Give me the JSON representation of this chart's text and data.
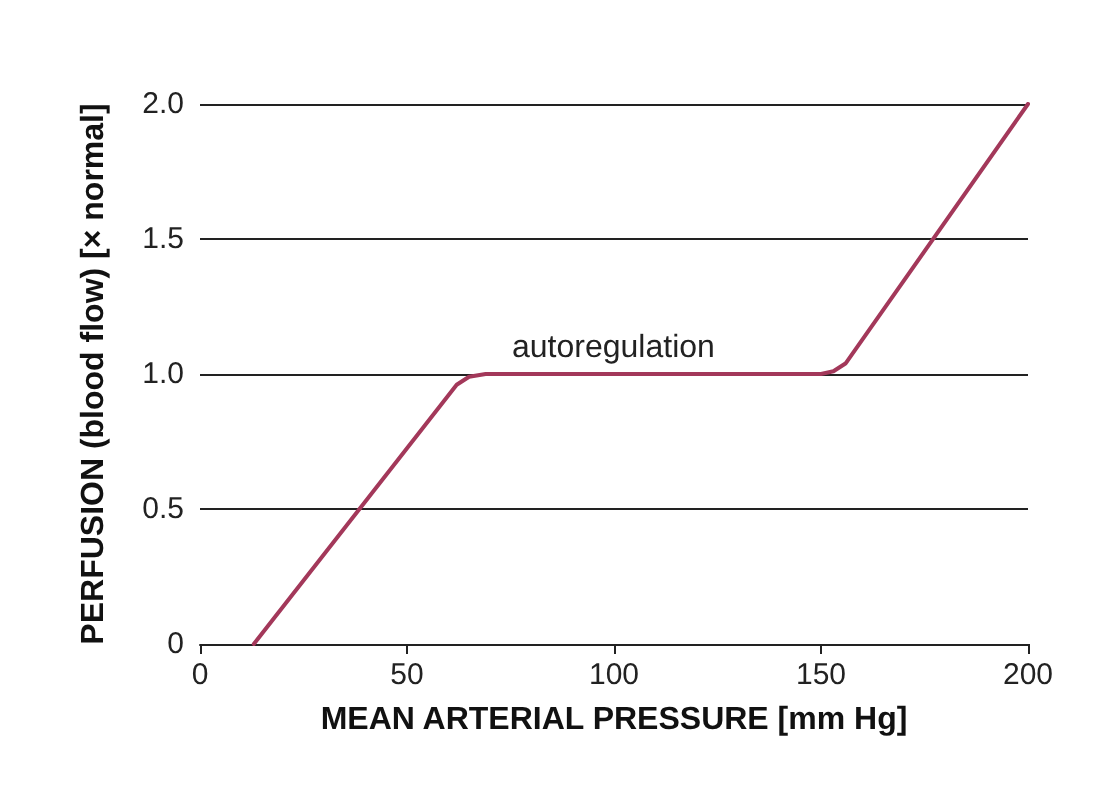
{
  "chart_data": {
    "type": "line",
    "xlabel": "MEAN ARTERIAL PRESSURE [mm Hg]",
    "ylabel": "PERFUSION (blood flow) [× normal]",
    "x": [
      13,
      62,
      65,
      69,
      150,
      153,
      156,
      200
    ],
    "series": [
      {
        "color": "#a3385a",
        "values": [
          0,
          0.96,
          0.99,
          1.0,
          1.0,
          1.01,
          1.04,
          2.0
        ]
      }
    ],
    "xlim": [
      0,
      200
    ],
    "xticks": [
      0,
      50,
      100,
      150,
      200
    ],
    "ylim": [
      0,
      2
    ],
    "yticks": [
      0,
      0.5,
      {
        "value": 1,
        "label": "1.0"
      },
      1.5,
      {
        "value": 2,
        "label": "2.0"
      }
    ],
    "grid": "y",
    "marker": "none",
    "line_style": "solid",
    "annotations": [
      "autoregulation"
    ]
  }
}
